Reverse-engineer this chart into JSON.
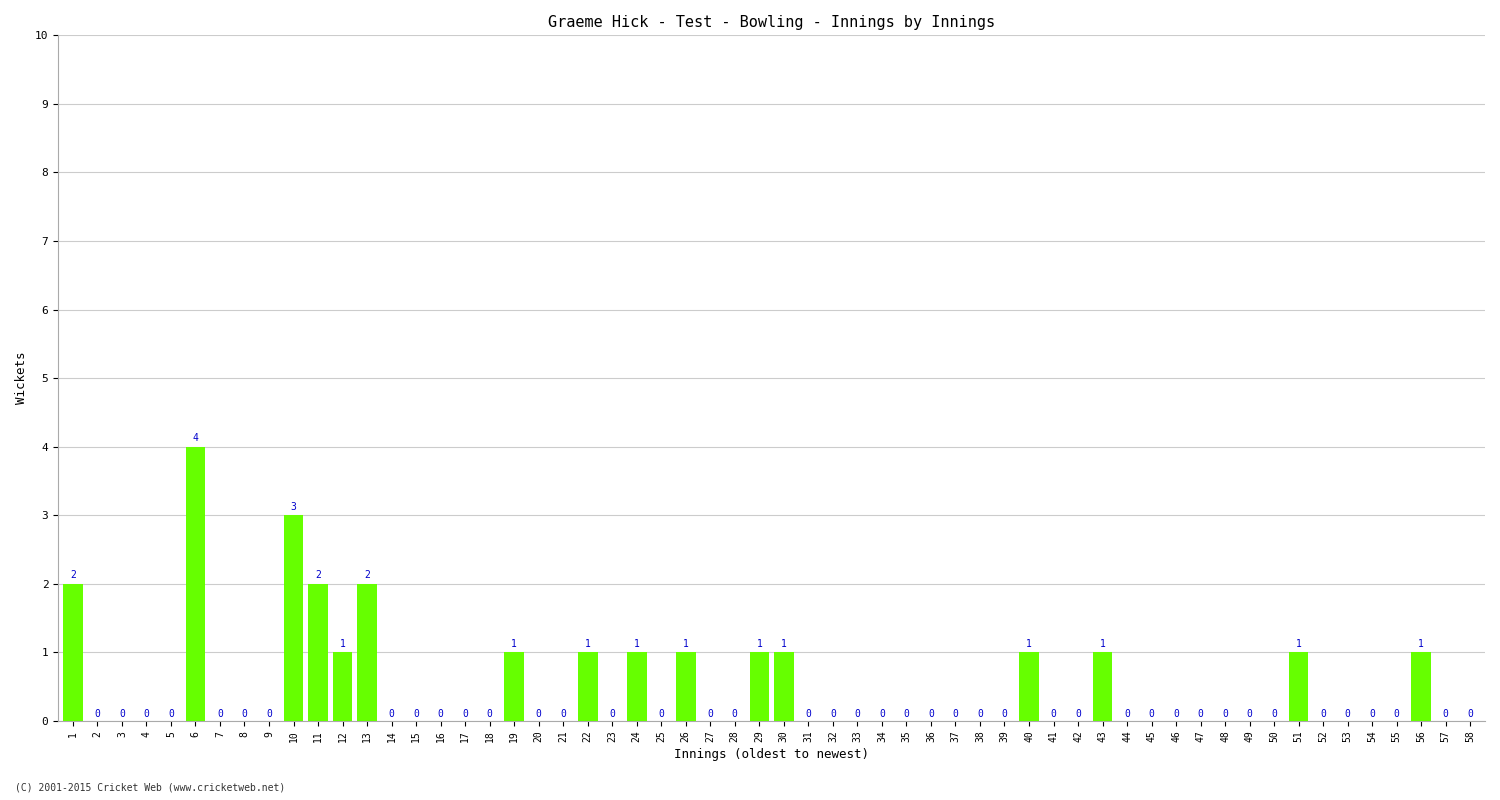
{
  "title": "Graeme Hick - Test - Bowling - Innings by Innings",
  "xlabel": "Innings (oldest to newest)",
  "ylabel": "Wickets",
  "footer": "(C) 2001-2015 Cricket Web (www.cricketweb.net)",
  "ylim": [
    0,
    10
  ],
  "yticks": [
    0,
    1,
    2,
    3,
    4,
    5,
    6,
    7,
    8,
    9,
    10
  ],
  "bar_color": "#66ff00",
  "label_color": "#0000cc",
  "categories": [
    "1",
    "2",
    "3",
    "4",
    "5",
    "6",
    "7",
    "8",
    "9",
    "10",
    "11",
    "12",
    "13",
    "14",
    "15",
    "16",
    "17",
    "18",
    "19",
    "20",
    "21",
    "22",
    "23",
    "24",
    "25",
    "26",
    "27",
    "28",
    "29",
    "30",
    "31",
    "32",
    "33",
    "34",
    "35",
    "36",
    "37",
    "38",
    "39",
    "40",
    "41",
    "42",
    "43",
    "44",
    "45",
    "46",
    "47",
    "48",
    "49",
    "50",
    "51",
    "52",
    "53",
    "54",
    "55",
    "56",
    "57",
    "58"
  ],
  "values": [
    2,
    0,
    0,
    0,
    0,
    4,
    0,
    0,
    0,
    3,
    2,
    1,
    2,
    0,
    0,
    0,
    0,
    0,
    1,
    0,
    0,
    1,
    0,
    1,
    0,
    1,
    0,
    0,
    1,
    1,
    0,
    0,
    0,
    0,
    0,
    0,
    0,
    0,
    0,
    1,
    0,
    0,
    1,
    0,
    0,
    0,
    0,
    0,
    0,
    0,
    1,
    0,
    0,
    0,
    0,
    1,
    0,
    0
  ],
  "background_color": "#ffffff",
  "grid_color": "#cccccc",
  "title_fontsize": 11,
  "tick_fontsize": 7,
  "label_fontsize": 7,
  "ylabel_fontsize": 9,
  "xlabel_fontsize": 9
}
